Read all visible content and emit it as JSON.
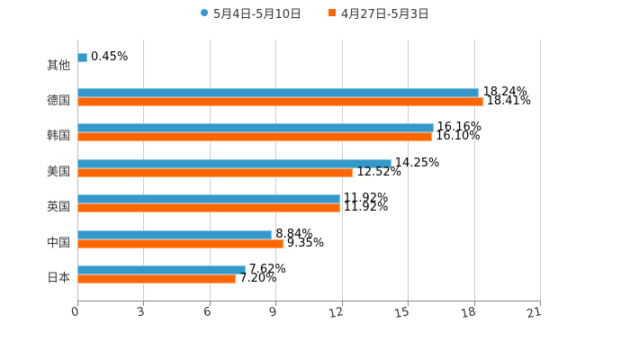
{
  "legend": {
    "series": [
      {
        "name": "5月4日-5月10日",
        "color": "#3399CC",
        "marker": "circle"
      },
      {
        "name": "4月27日-5月3日",
        "color": "#FF6600",
        "marker": "square"
      }
    ]
  },
  "axis": {
    "ticks": [
      "0",
      "3",
      "6",
      "9",
      "12",
      "15",
      "18",
      "21"
    ]
  },
  "categories": [
    {
      "name": "其他",
      "a_label": "0.45%",
      "b_label": ""
    },
    {
      "name": "德国",
      "a_label": "18.24%",
      "b_label": "18.41%"
    },
    {
      "name": "韩国",
      "a_label": "16.16%",
      "b_label": "16.10%"
    },
    {
      "name": "美国",
      "a_label": "14.25%",
      "b_label": "12.52%"
    },
    {
      "name": "英国",
      "a_label": "11.92%",
      "b_label": "11.92%"
    },
    {
      "name": "中国",
      "a_label": "8.84%",
      "b_label": "9.35%"
    },
    {
      "name": "日本",
      "a_label": "7.62%",
      "b_label": "7.20%"
    }
  ],
  "chart_data": {
    "type": "bar",
    "orientation": "horizontal",
    "title": "",
    "xlabel": "",
    "ylabel": "",
    "categories": [
      "其他",
      "德国",
      "韩国",
      "美国",
      "英国",
      "中国",
      "日本"
    ],
    "series": [
      {
        "name": "5月4日-5月10日",
        "color": "#3399CC",
        "values": [
          0.45,
          18.24,
          16.16,
          14.25,
          11.92,
          8.84,
          7.62
        ]
      },
      {
        "name": "4月27日-5月3日",
        "color": "#FF6600",
        "values": [
          null,
          18.41,
          16.1,
          12.52,
          11.92,
          9.35,
          7.2
        ]
      }
    ],
    "xlim": [
      0,
      21
    ],
    "xticks": [
      0,
      3,
      6,
      9,
      12,
      15,
      18,
      21
    ],
    "grid": true,
    "legend_position": "top",
    "value_labels": true,
    "value_format": "percent"
  }
}
